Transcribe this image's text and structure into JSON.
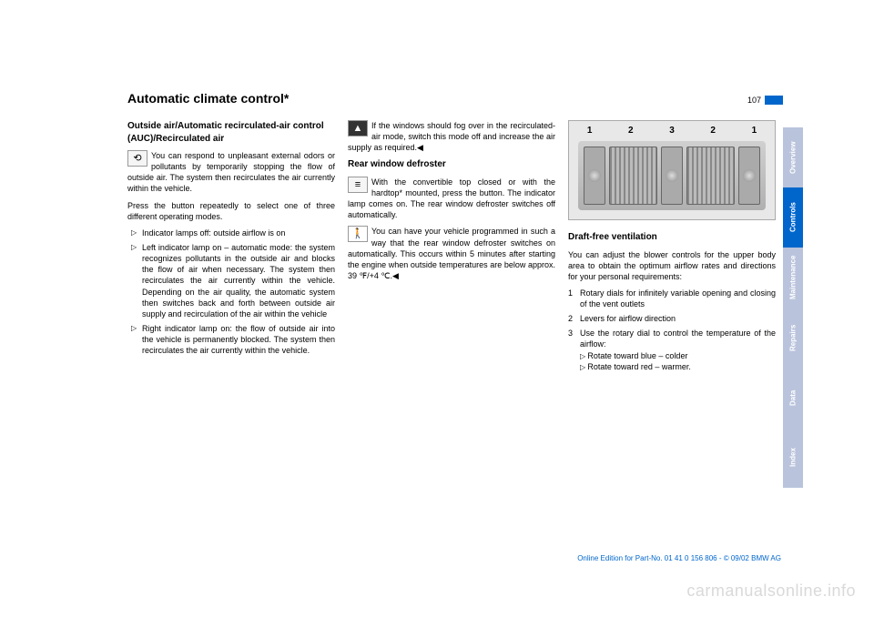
{
  "page_number": "107",
  "title": "Automatic climate control*",
  "watermark": "carmanualsonline.info",
  "edition_line": "Online Edition for Part-No. 01 41 0 156 806 - © 09/02 BMW AG",
  "tabs": {
    "overview": "Overview",
    "controls": "Controls",
    "maintenance": "Maintenance",
    "repairs": "Repairs",
    "data": "Data",
    "index": "Index"
  },
  "col1": {
    "h_outside": "Outside air/Automatic recirculated-air control (AUC)/Recirculated air",
    "p_respond": "You can respond to unpleasant external odors or pollutants by temporarily stopping the flow of outside air. The system then recirculates the air currently within the vehicle.",
    "p_press": "Press the button repeatedly to select one of three different operating modes.",
    "li_off": "Indicator lamps off: outside airflow is on",
    "li_left": "Left indicator lamp on – automatic mode: the system recognizes pollutants in the outside air and blocks the flow of air when necessary. The system then recirculates the air currently within the vehicle. Depending on the air quality, the automatic system then switches back and forth between outside air supply and recirculation of the air within the vehicle",
    "li_right": "Right indicator lamp on: the flow of outside air into the vehicle is permanently blocked. The system then recirculates the air currently within the vehicle."
  },
  "col2": {
    "p_fog": "If the windows should fog over in the recirculated-air mode, switch this mode off and increase the air supply as required.◀",
    "h_rear": "Rear window defroster",
    "p_rear": "With the convertible top closed or with the hardtop* mounted, press the button. The indicator lamp comes on. The rear window defroster switches off automatically.",
    "p_program": "You can have your vehicle programmed in such a way that the rear window defroster switches on automatically. This occurs within 5 minutes after starting the engine when outside temperatures are below approx. 39 ℉/+4 ℃.◀"
  },
  "col3": {
    "vent_labels": [
      "1",
      "2",
      "3",
      "2",
      "1"
    ],
    "h_draft": "Draft-free ventilation",
    "p_adjust": "You can adjust the blower controls for the upper body area to obtain the optimum airflow rates and directions for your personal requirements:",
    "n1": "Rotary dials for infinitely variable opening and closing of the vent outlets",
    "n2": "Levers for airflow direction",
    "n3": "Use the rotary dial to control the temperature of the airflow:",
    "n3a": "Rotate toward blue – colder",
    "n3b": "Rotate toward red – warmer."
  }
}
